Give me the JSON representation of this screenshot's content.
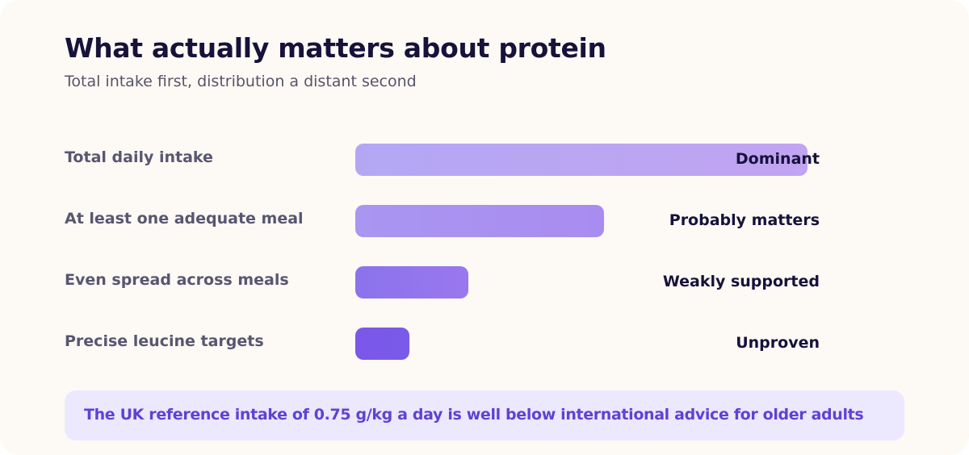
{
  "header": {
    "title": "What actually matters about protein",
    "subtitle": "Total intake first, distribution a distant second"
  },
  "chart_data": {
    "type": "bar",
    "orientation": "horizontal",
    "title": "What actually matters about protein",
    "subtitle": "Total intake first, distribution a distant second",
    "categories": [
      "Total daily intake",
      "At least one adequate meal",
      "Even spread across meals",
      "Precise leucine targets"
    ],
    "values": [
      1.0,
      0.55,
      0.25,
      0.12
    ],
    "value_labels": [
      "Dominant",
      "Probably matters",
      "Weakly supported",
      "Unproven"
    ],
    "colors": [
      [
        "#b3a7f4",
        "#c1a4f2"
      ],
      [
        "#a996f1",
        "#a98cf0"
      ],
      [
        "#8b73ec",
        "#9a77ef"
      ],
      [
        "#7b58e9",
        "#7a5ae9"
      ]
    ],
    "xlim": [
      0,
      1
    ],
    "grid": false,
    "legend": "none"
  },
  "footer": {
    "note": "The UK reference intake of 0.75 g/kg a day is well below international advice for older adults"
  }
}
